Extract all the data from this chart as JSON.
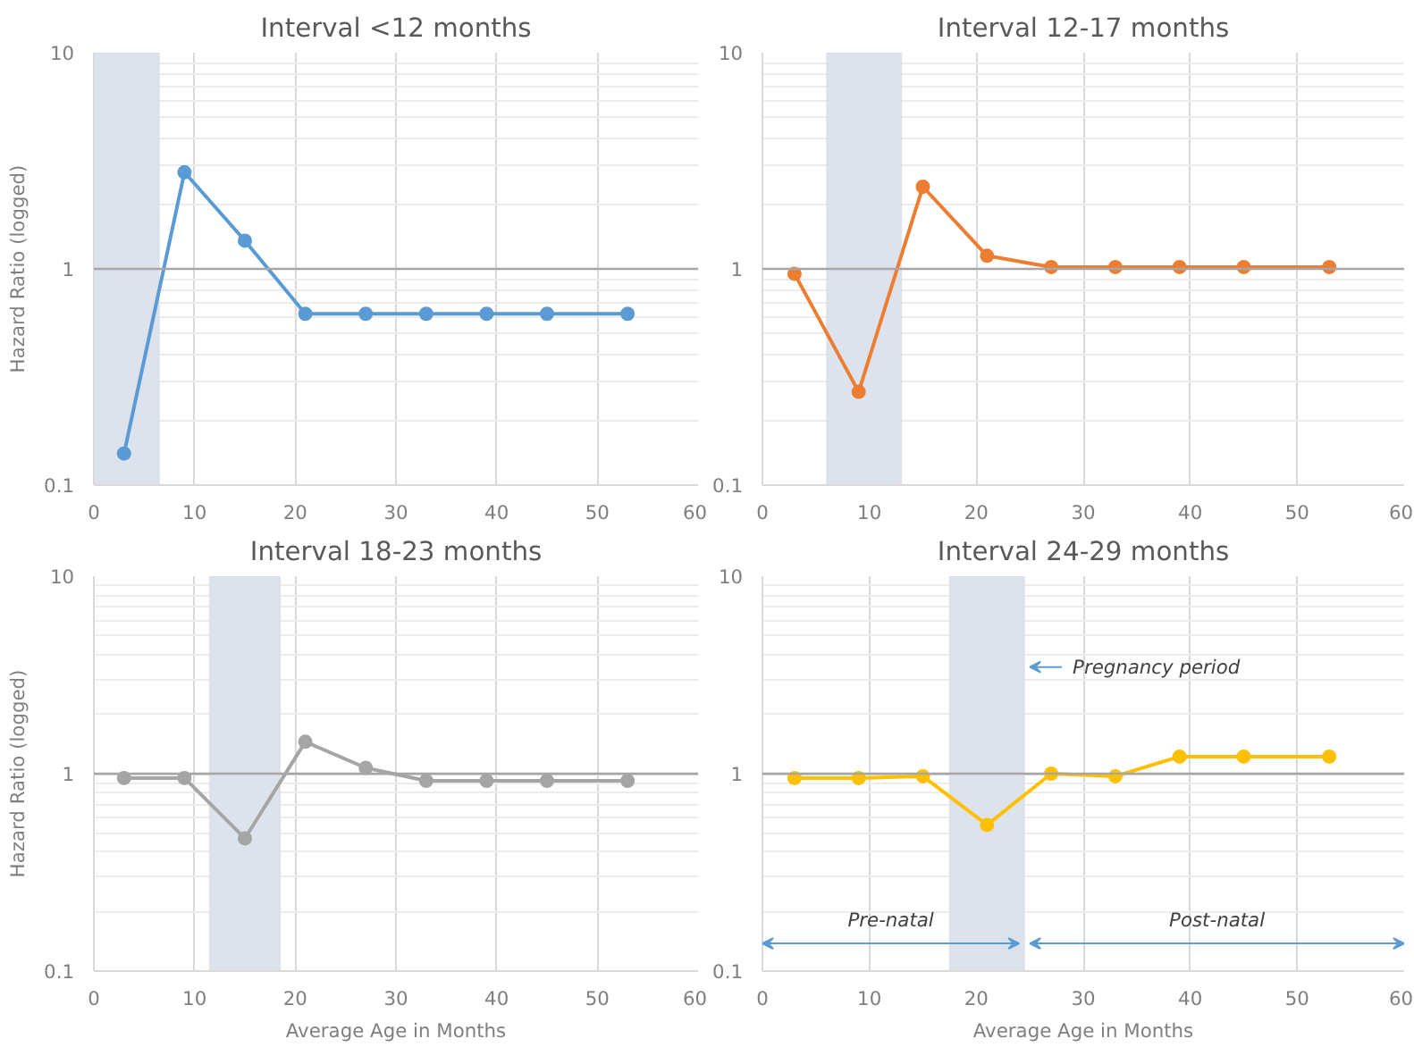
{
  "chart_data": [
    {
      "type": "line",
      "title": "Interval <12 months",
      "ylabel": "Hazard Ratio (logged)",
      "x": [
        3,
        9,
        15,
        21,
        27,
        33,
        39,
        45,
        53
      ],
      "xlim": [
        0,
        60
      ],
      "xticks": [
        0,
        10,
        20,
        30,
        40,
        50,
        60
      ],
      "ylim": [
        0.1,
        10
      ],
      "yticks": [
        0.1,
        1,
        10
      ],
      "log": "y",
      "grid": true,
      "marker": "circle",
      "series": [
        {
          "color": "#5b9bd5",
          "values": [
            0.14,
            2.8,
            1.35,
            0.62,
            0.62,
            0.62,
            0.62,
            0.62,
            0.62
          ]
        }
      ],
      "ref_lines": [
        {
          "axis": "y",
          "value": 1,
          "color": "#a6a6a6"
        }
      ],
      "bands": [
        {
          "axis": "x",
          "from": 0,
          "to": 6.5,
          "color": "#dde3ec"
        }
      ]
    },
    {
      "type": "line",
      "title": "Interval 12-17 months",
      "x": [
        3,
        9,
        15,
        21,
        27,
        33,
        39,
        45,
        53
      ],
      "xlim": [
        0,
        60
      ],
      "xticks": [
        0,
        10,
        20,
        30,
        40,
        50,
        60
      ],
      "ylim": [
        0.1,
        10
      ],
      "yticks": [
        0.1,
        1,
        10
      ],
      "log": "y",
      "grid": true,
      "marker": "circle",
      "series": [
        {
          "color": "#ed7d31",
          "values": [
            0.95,
            0.27,
            2.4,
            1.15,
            1.02,
            1.02,
            1.02,
            1.02,
            1.02
          ]
        }
      ],
      "ref_lines": [
        {
          "axis": "y",
          "value": 1,
          "color": "#a6a6a6"
        }
      ],
      "bands": [
        {
          "axis": "x",
          "from": 6,
          "to": 13,
          "color": "#dde3ec"
        }
      ]
    },
    {
      "type": "line",
      "title": "Interval 18-23 months",
      "xlabel": "Average Age in Months",
      "ylabel": "Hazard Ratio (logged)",
      "x": [
        3,
        9,
        15,
        21,
        27,
        33,
        39,
        45,
        53
      ],
      "xlim": [
        0,
        60
      ],
      "xticks": [
        0,
        10,
        20,
        30,
        40,
        50,
        60
      ],
      "ylim": [
        0.1,
        10
      ],
      "yticks": [
        0.1,
        1,
        10
      ],
      "log": "y",
      "grid": true,
      "marker": "circle",
      "series": [
        {
          "color": "#a5a5a5",
          "values": [
            0.95,
            0.95,
            0.47,
            1.45,
            1.07,
            0.92,
            0.92,
            0.92,
            0.92
          ]
        }
      ],
      "ref_lines": [
        {
          "axis": "y",
          "value": 1,
          "color": "#a6a6a6"
        }
      ],
      "bands": [
        {
          "axis": "x",
          "from": 11.5,
          "to": 18.5,
          "color": "#dde3ec"
        }
      ]
    },
    {
      "type": "line",
      "title": "Interval 24-29 months",
      "xlabel": "Average Age in Months",
      "x": [
        3,
        9,
        15,
        21,
        27,
        33,
        39,
        45,
        53
      ],
      "xlim": [
        0,
        60
      ],
      "xticks": [
        0,
        10,
        20,
        30,
        40,
        50,
        60
      ],
      "ylim": [
        0.1,
        10
      ],
      "yticks": [
        0.1,
        1,
        10
      ],
      "log": "y",
      "grid": true,
      "marker": "circle",
      "series": [
        {
          "color": "#ffc000",
          "values": [
            0.95,
            0.95,
            0.97,
            0.55,
            1.0,
            0.97,
            1.22,
            1.22,
            1.22
          ]
        }
      ],
      "ref_lines": [
        {
          "axis": "y",
          "value": 1,
          "color": "#a6a6a6"
        }
      ],
      "bands": [
        {
          "axis": "x",
          "from": 17.5,
          "to": 24.5,
          "color": "#dde3ec"
        }
      ],
      "annotations": [
        "Pregnancy period",
        "Pre-natal",
        "Post-natal"
      ]
    }
  ]
}
